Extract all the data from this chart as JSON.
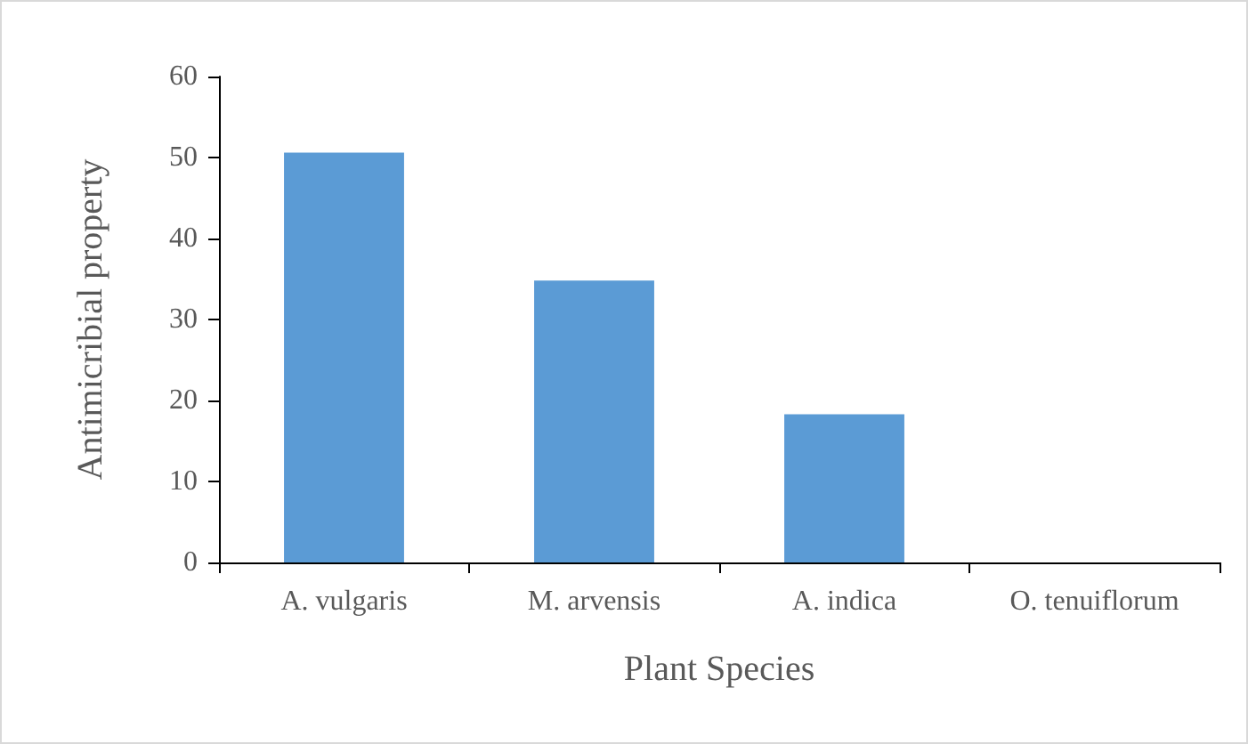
{
  "chart_data": {
    "type": "bar",
    "xlabel": "Plant Species",
    "ylabel": "Antimicribial property",
    "categories": [
      "A. vulgaris",
      "M. arvensis",
      "A. indica",
      "O. tenuiflorum"
    ],
    "values": [
      50.6,
      34.8,
      18.3,
      0
    ],
    "color": "#5b9bd5",
    "ylim": [
      0,
      60
    ],
    "yticks": [
      0,
      10,
      20,
      30,
      40,
      50,
      60
    ],
    "grid": false
  }
}
